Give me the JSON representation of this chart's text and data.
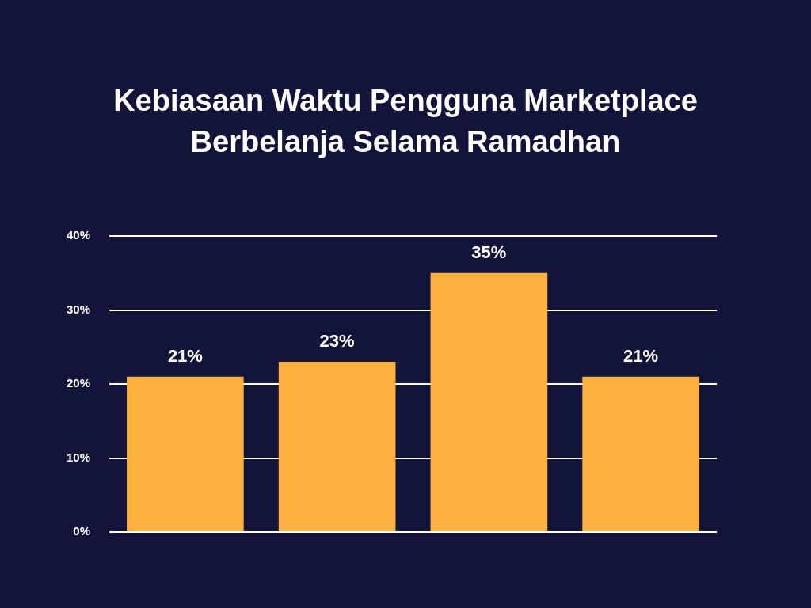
{
  "chart_data": {
    "type": "bar",
    "title": "Kebiasaan Waktu Pengguna Marketplace Berbelanja Selama Ramadhan",
    "categories": [
      null,
      null,
      null,
      null
    ],
    "values": [
      21,
      23,
      35,
      21
    ],
    "color": "#fbb040",
    "ylim": [
      0,
      40
    ],
    "yticks": [
      {
        "value": 0,
        "label": "0%"
      },
      {
        "value": 10,
        "label": "10%"
      },
      {
        "value": 20,
        "label": "20%"
      },
      {
        "value": 30,
        "label": "30%"
      },
      {
        "value": 40,
        "label": "40%"
      }
    ],
    "grid": "y",
    "data_labels": true,
    "value_labels": [
      "21%",
      "23%",
      "35%",
      "21%"
    ]
  }
}
